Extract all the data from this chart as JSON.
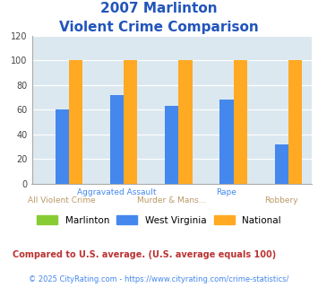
{
  "title_line1": "2007 Marlinton",
  "title_line2": "Violent Crime Comparison",
  "categories": [
    "All Violent Crime",
    "Aggravated Assault",
    "Murder & Mans...",
    "Rape",
    "Robbery"
  ],
  "top_row_labels": [
    "",
    "Aggravated Assault",
    "",
    "Rape",
    ""
  ],
  "bottom_row_labels": [
    "All Violent Crime",
    "",
    "Murder & Mans...",
    "",
    "Robbery"
  ],
  "series": {
    "Marlinton": [
      0,
      0,
      0,
      0,
      0
    ],
    "West Virginia": [
      60,
      72,
      63,
      68,
      32
    ],
    "National": [
      100,
      100,
      100,
      100,
      100
    ]
  },
  "colors": {
    "Marlinton": "#88cc33",
    "West Virginia": "#4488ee",
    "National": "#ffaa22"
  },
  "ylim": [
    0,
    120
  ],
  "yticks": [
    0,
    20,
    40,
    60,
    80,
    100,
    120
  ],
  "plot_bg": "#dce8f0",
  "title_color": "#2255bb",
  "label_top_color": "#4488ee",
  "label_bottom_color": "#bb9966",
  "footnote1": "Compared to U.S. average. (U.S. average equals 100)",
  "footnote2": "© 2025 CityRating.com - https://www.cityrating.com/crime-statistics/",
  "footnote1_color": "#bb3333",
  "footnote2_color": "#4488ee",
  "bar_width": 0.25,
  "group_positions": [
    0,
    1,
    2,
    3,
    4
  ]
}
